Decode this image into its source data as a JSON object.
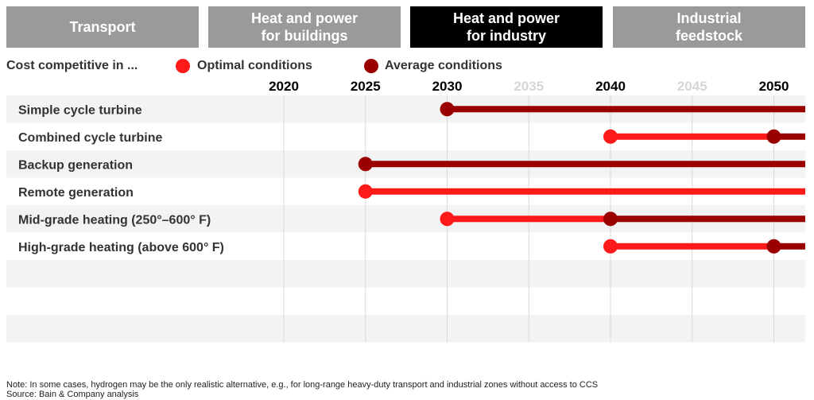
{
  "tabs": [
    {
      "label": "Transport",
      "active": false
    },
    {
      "label": "Heat and power\nfor buildings",
      "active": false
    },
    {
      "label": "Heat and power\nfor industry",
      "active": true
    },
    {
      "label": "Industrial\nfeedstock",
      "active": false
    }
  ],
  "legend": {
    "title": "Cost competitive in ...",
    "optimal_label": "Optimal conditions",
    "average_label": "Average conditions"
  },
  "colors": {
    "optimal": "#ff1a1a",
    "average": "#9b0000",
    "tab_inactive": "#9a9a9a",
    "tab_active": "#000000"
  },
  "chart_data": {
    "type": "timeline",
    "x_ticks": [
      2020,
      2025,
      2030,
      2035,
      2040,
      2045,
      2050
    ],
    "x_ticks_bold": [
      2020,
      2025,
      2030,
      2040,
      2050
    ],
    "x_ticks_faint": [
      2035,
      2045
    ],
    "xlim": [
      2015,
      2052
    ],
    "grid": true,
    "rows": [
      {
        "label": "Simple cycle turbine",
        "optimal": null,
        "average": 2030
      },
      {
        "label": "Combined cycle turbine",
        "optimal": 2040,
        "average": 2050
      },
      {
        "label": "Backup generation",
        "optimal": null,
        "average": 2025
      },
      {
        "label": "Remote generation",
        "optimal": 2025,
        "average": null
      },
      {
        "label": "Mid-grade heating (250°–600° F)",
        "optimal": 2030,
        "average": 2040
      },
      {
        "label": "High-grade heating (above 600° F)",
        "optimal": 2040,
        "average": 2050
      }
    ],
    "empty_rows": 3
  },
  "footer": {
    "note": "Note: In some cases, hydrogen may be the only realistic alternative, e.g., for long-range heavy-duty transport and industrial zones without access to CCS",
    "source": "Source: Bain & Company analysis"
  }
}
